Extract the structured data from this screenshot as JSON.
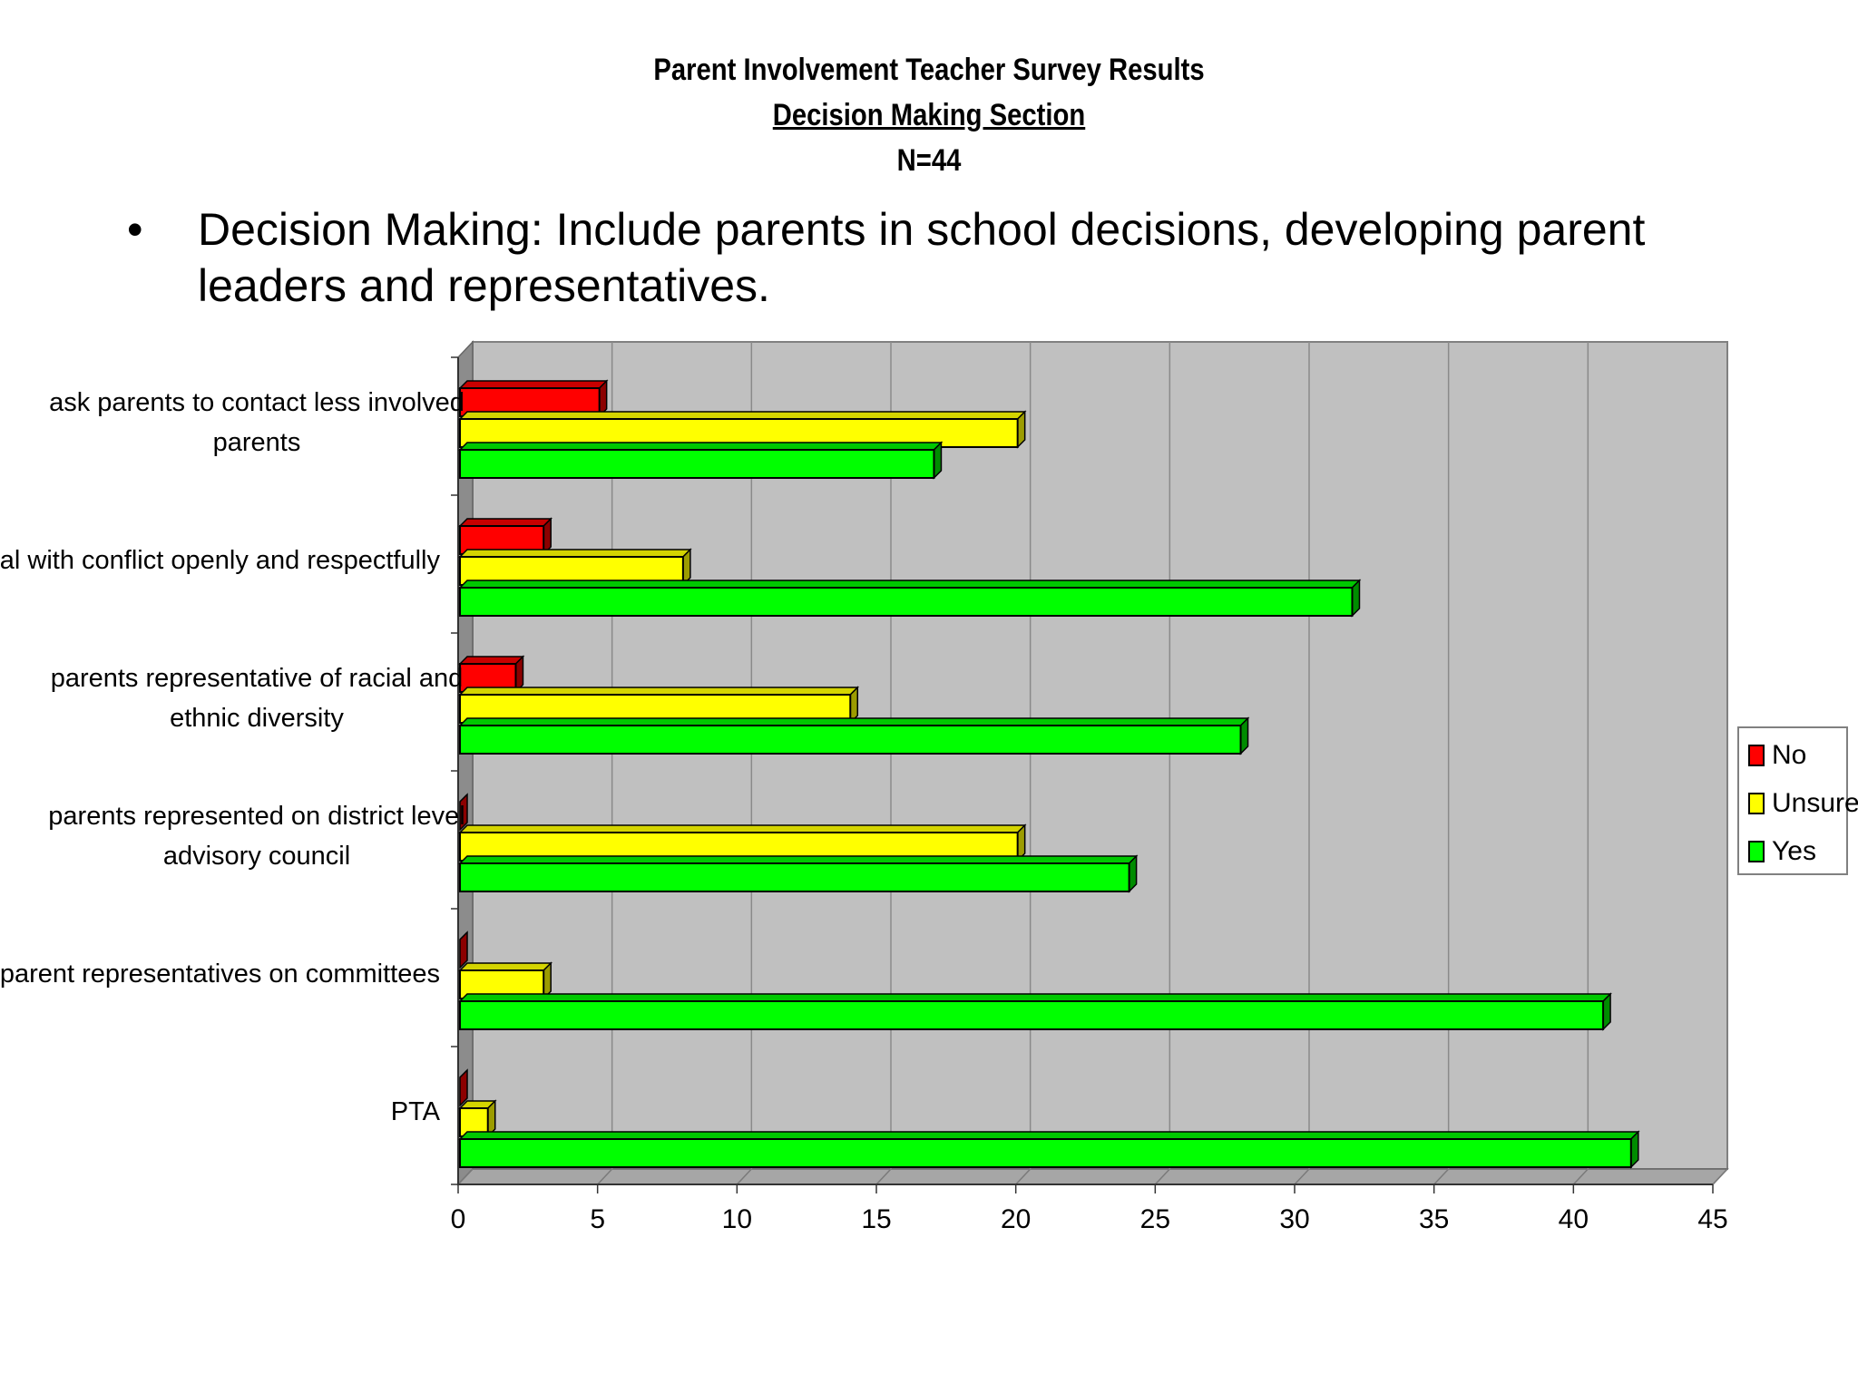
{
  "header": {
    "title": "Parent Involvement Teacher Survey Results",
    "section": "Decision Making Section",
    "n_label": "N=44"
  },
  "bullet": {
    "marker": "•",
    "text": "Decision Making: Include parents in school decisions, developing parent leaders and representatives."
  },
  "chart_data": {
    "type": "bar",
    "orientation": "horizontal",
    "categories": [
      "ask parents to contact less involved parents",
      "deal with conflict openly and respectfully",
      "parents representative of racial and ethnic diversity",
      "parents represented on district level advisory council",
      "parent representatives on committees",
      "PTA"
    ],
    "series": [
      {
        "name": "No",
        "color": "#ff0000",
        "values": [
          5,
          3,
          2,
          0,
          0,
          0
        ]
      },
      {
        "name": "Unsure",
        "color": "#ffff00",
        "values": [
          20,
          8,
          14,
          20,
          3,
          1
        ]
      },
      {
        "name": "Yes",
        "color": "#00ff00",
        "values": [
          17,
          32,
          28,
          24,
          41,
          42
        ]
      }
    ],
    "xlim": [
      0,
      45
    ],
    "xticks": [
      "0",
      "5",
      "10",
      "15",
      "20",
      "25",
      "30",
      "35",
      "40",
      "45"
    ],
    "grid": true,
    "legend": "right",
    "plot_background": "#c0c0c0"
  }
}
